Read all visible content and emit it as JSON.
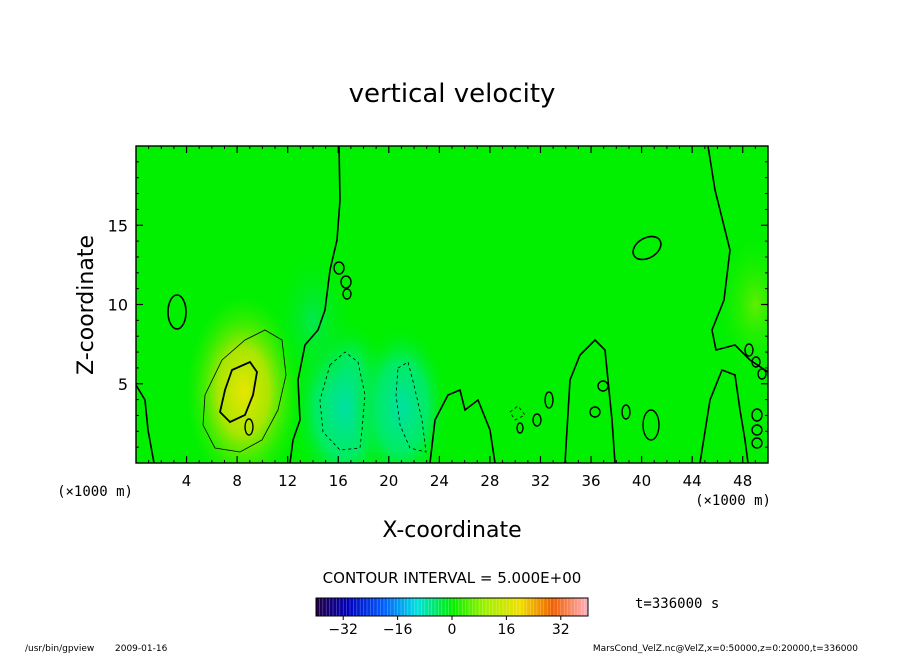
{
  "chart_data": {
    "type": "heatmap",
    "title": "vertical velocity",
    "xlabel": "X-coordinate",
    "ylabel": "Z-coordinate",
    "x_unit": "(×1000 m)",
    "y_unit": "(×1000 m)",
    "x_ticks": [
      4,
      8,
      12,
      16,
      20,
      24,
      28,
      32,
      36,
      40,
      44,
      48
    ],
    "y_ticks": [
      5,
      10,
      15
    ],
    "xlim": [
      0,
      50
    ],
    "ylim": [
      0,
      20
    ],
    "contour_interval": "CONTOUR INTERVAL = 5.000E+00",
    "time_label": "t=336000 s",
    "colorbar": {
      "ticks": [
        -32,
        -16,
        0,
        16,
        32
      ],
      "range": [
        -40,
        40
      ],
      "colormap": "rainbow"
    },
    "features": [
      {
        "x": 8.5,
        "z": 4.5,
        "w": 4.5,
        "sign": "updraft"
      },
      {
        "x": 16.5,
        "z": 3.5,
        "w": -4,
        "sign": "downdraft"
      },
      {
        "x": 21,
        "z": 3.5,
        "w": -3,
        "sign": "downdraft"
      },
      {
        "x": 14,
        "z": 9,
        "w": -2,
        "sign": "downdraft"
      },
      {
        "x": 49,
        "z": 10,
        "w": 2,
        "sign": "updraft"
      }
    ]
  },
  "footer": {
    "program": "/usr/bin/gpview",
    "date": "2009-01-16",
    "source": "MarsCond_VelZ.nc@VelZ,x=0:50000,z=0:20000,t=336000"
  },
  "colors": {
    "background": "#00f000",
    "axis": "#000000"
  }
}
